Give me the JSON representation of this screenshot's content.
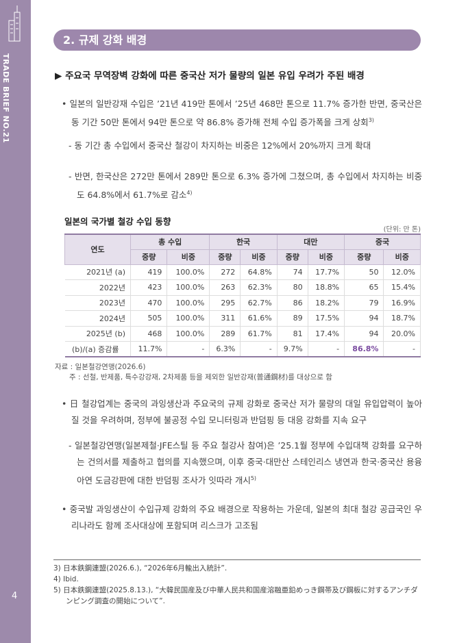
{
  "sidebar": {
    "brand": "TRADE BRIEF NO.21",
    "page_number": "4"
  },
  "section": {
    "title": "2. 규제 강화 배경"
  },
  "heading": "▶  주요국 무역장벽 강화에 따른 중국산 저가 물량의 일본 유입 우려가 주된 배경",
  "paragraphs": [
    {
      "text": "• 일본의 일반강재 수입은 ’21년 419만 톤에서 ’25년 468만 톤으로 11.7% 증가한 반면, 중국산은 동 기간 50만 톤에서 94만 톤으로 약 86.8% 증가해 전체 수입 증가폭을 크게 상회",
      "ref": "3)"
    },
    {
      "text": "- 동 기간 총 수입에서 중국산 철강이 차지하는 비중은 12%에서 20%까지 크게 확대"
    },
    {
      "text": "- 반면, 한국산은 272만 톤에서 289만 톤으로 6.3% 증가에 그쳤으며, 총 수입에서 차지하는 비중도 64.8%에서 61.7%로 감소",
      "ref": "4)"
    }
  ],
  "table": {
    "title": "일본의 국가별 철강 수입 동향",
    "unit": "(단위: 만 톤)",
    "header": {
      "row_label": "연도",
      "groups": [
        "총 수입",
        "한국",
        "대만",
        "중국"
      ],
      "subheaders": [
        "중량",
        "비중",
        "중량",
        "비중",
        "중량",
        "비중",
        "중량",
        "비중"
      ]
    },
    "rows": [
      [
        "2021년 (a)",
        "419",
        "100.0%",
        "272",
        "64.8%",
        "74",
        "17.7%",
        "50",
        "12.0%"
      ],
      [
        "2022년",
        "423",
        "100.0%",
        "263",
        "62.3%",
        "80",
        "18.8%",
        "65",
        "15.4%"
      ],
      [
        "2023년",
        "470",
        "100.0%",
        "295",
        "62.7%",
        "86",
        "18.2%",
        "79",
        "16.9%"
      ],
      [
        "2024년",
        "505",
        "100.0%",
        "311",
        "61.6%",
        "89",
        "17.5%",
        "94",
        "18.7%"
      ],
      [
        "2025년 (b)",
        "468",
        "100.0%",
        "289",
        "61.7%",
        "81",
        "17.4%",
        "94",
        "20.0%"
      ],
      [
        "(b)/(a) 증감률",
        "11.7%",
        "-",
        "6.3%",
        "-",
        "9.7%",
        "-",
        "86.8%",
        "-"
      ]
    ],
    "source": "자료 : 일본철강연맹(2026.6)",
    "note": "주 : 선철, 반제품, 특수강강재, 2차제품 등을 제외한 일반강재(普通鋼材)를 대상으로 함"
  },
  "paragraphs2": [
    {
      "text": "• 日 철강업계는 중국의 과잉생산과 주요국의 규제 강화로 중국산 저가 물량의 대일 유입압력이 높아질 것을 우려하며, 정부에 불공정 수입 모니터링과 반덤핑 등 대응 강화를 지속 요구"
    },
    {
      "text": "- 일본철강연맹(일본제철·JFE스틸 등 주요 철강사 참여)은 ’25.1월 정부에 수입대책 강화를 요구하는 건의서를 제출하고 협의를 지속했으며, 이후 중국·대만산 스테인리스 냉연과 한국·중국산 용융아연 도금강판에 대한 반덤핑 조사가 잇따라 개시",
      "ref": "5)"
    },
    {
      "text": "• 중국발 과잉생산이 수입규제 강화의 주요 배경으로 작용하는 가운데, 일본의 최대 철강 공급국인 우리나라도 함께 조사대상에 포함되며 리스크가 고조됨"
    }
  ],
  "footnotes": [
    {
      "marker": "3)",
      "text": "日本鉄鋼連盟(2026.6.), “2026年6月輸出入統計”."
    },
    {
      "marker": "4)",
      "text": "Ibid."
    },
    {
      "marker": "5)",
      "text": "日本鉄鋼連盟(2025.8.13.), “大韓民国産及び中華人民共和国産溶融亜鉛めっき鋼帯及び鋼板に対するアンチダンピング調査の開始について”."
    }
  ]
}
